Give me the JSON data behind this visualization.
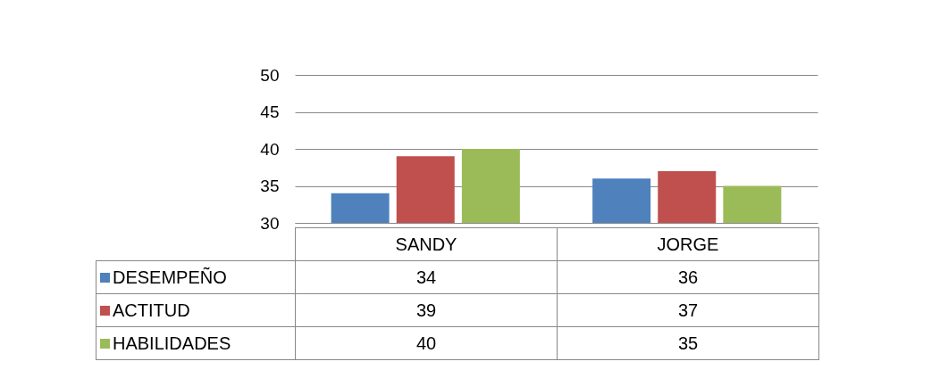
{
  "chart_data": {
    "type": "bar",
    "categories": [
      "SANDY",
      "JORGE"
    ],
    "series": [
      {
        "name": "DESEMPEÑO",
        "color": "#4f81bd",
        "values": [
          34,
          36
        ]
      },
      {
        "name": "ACTITUD",
        "color": "#c0504d",
        "values": [
          39,
          37
        ]
      },
      {
        "name": "HABILIDADES",
        "color": "#9bbb59",
        "values": [
          40,
          35
        ]
      }
    ],
    "ylim": [
      30,
      50
    ],
    "yticks": [
      30,
      35,
      40,
      45,
      50
    ],
    "grid": "y",
    "legend": "bottom",
    "data_labels": true
  }
}
